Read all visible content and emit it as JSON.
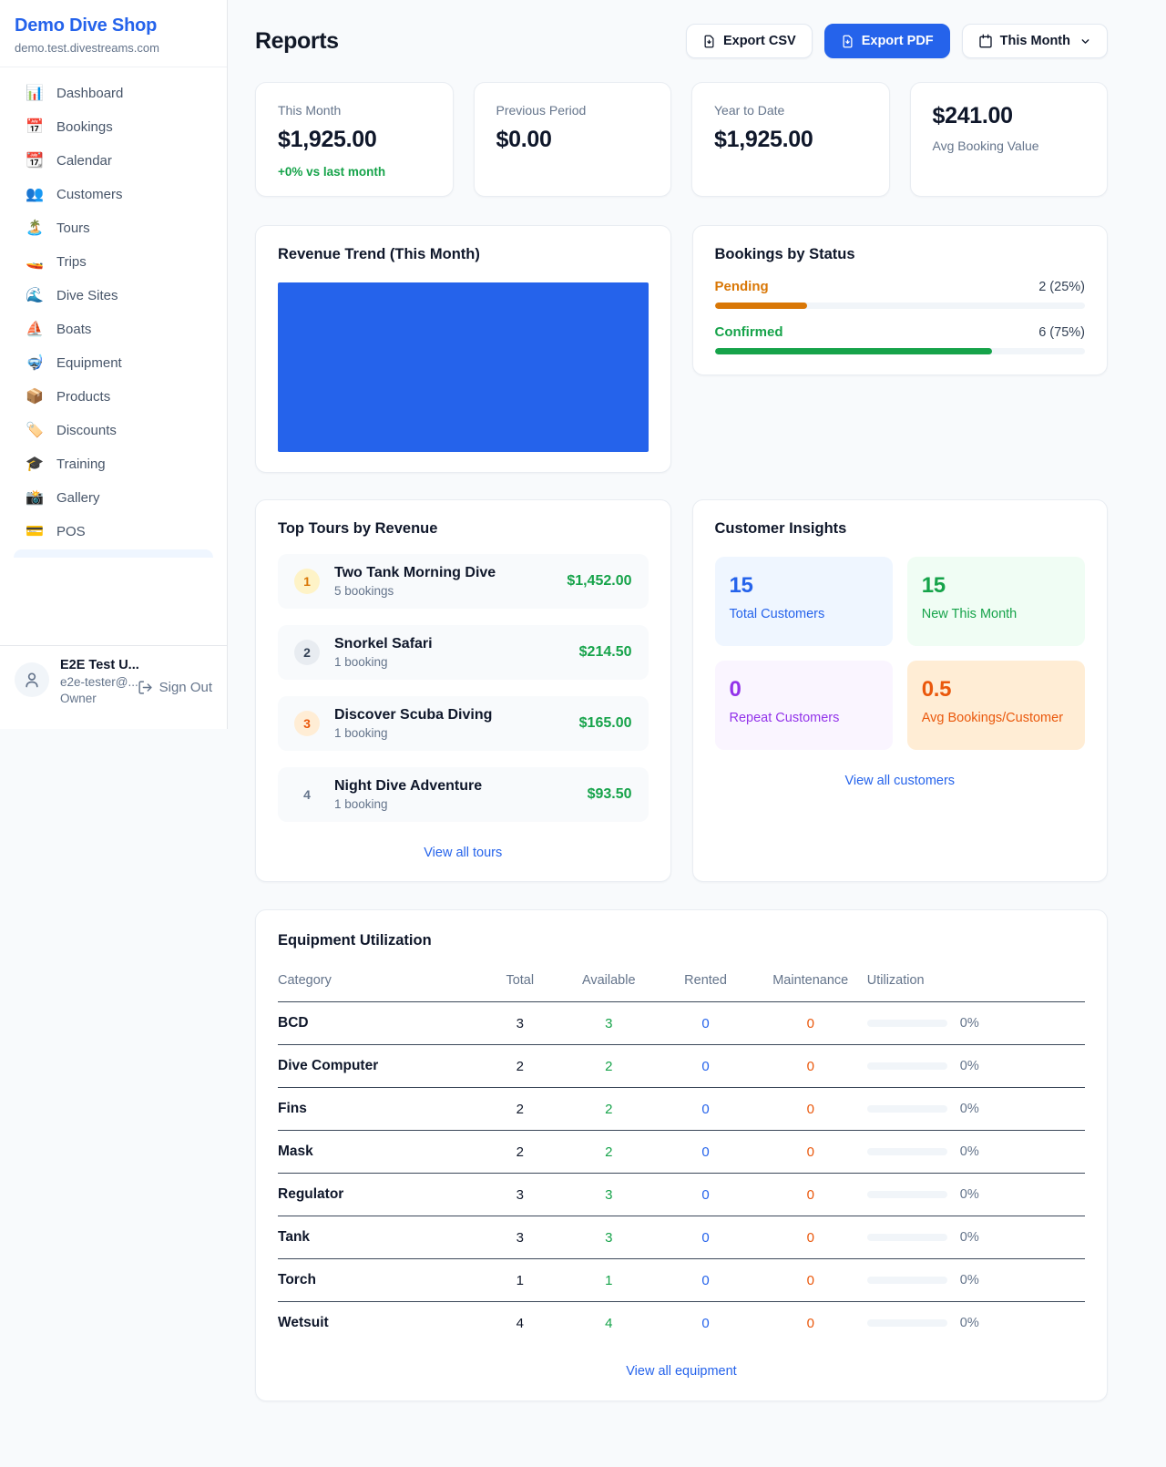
{
  "app": {
    "name": "Demo Dive Shop",
    "domain": "demo.test.divestreams.com"
  },
  "colors": {
    "accent": "#2563eb",
    "success": "#16a34a",
    "warning": "#d97706",
    "danger_orange": "#ea580c",
    "purple": "#9333ea",
    "page_bg": "#f8fafc"
  },
  "sidebar": {
    "items": [
      {
        "label": "Dashboard",
        "icon": "📊",
        "icon_name": "bar-chart-icon"
      },
      {
        "label": "Bookings",
        "icon": "📅",
        "icon_name": "calendar-date-icon"
      },
      {
        "label": "Calendar",
        "icon": "📆",
        "icon_name": "tear-off-calendar-icon"
      },
      {
        "label": "Customers",
        "icon": "👥",
        "icon_name": "people-icon"
      },
      {
        "label": "Tours",
        "icon": "🏝️",
        "icon_name": "island-icon"
      },
      {
        "label": "Trips",
        "icon": "🚤",
        "icon_name": "speedboat-icon"
      },
      {
        "label": "Dive Sites",
        "icon": "🌊",
        "icon_name": "wave-icon"
      },
      {
        "label": "Boats",
        "icon": "⛵",
        "icon_name": "sailboat-icon"
      },
      {
        "label": "Equipment",
        "icon": "🤿",
        "icon_name": "diving-mask-icon"
      },
      {
        "label": "Products",
        "icon": "📦",
        "icon_name": "package-icon"
      },
      {
        "label": "Discounts",
        "icon": "🏷️",
        "icon_name": "tag-icon"
      },
      {
        "label": "Training",
        "icon": "🎓",
        "icon_name": "graduation-cap-icon"
      },
      {
        "label": "Gallery",
        "icon": "📸",
        "icon_name": "camera-icon"
      },
      {
        "label": "POS",
        "icon": "💳",
        "icon_name": "credit-card-icon"
      }
    ],
    "user": {
      "name": "E2E Test U...",
      "email": "e2e-tester@...",
      "role": "Owner",
      "sign_out_label": "Sign Out"
    }
  },
  "header": {
    "title": "Reports",
    "export_csv": "Export CSV",
    "export_pdf": "Export PDF",
    "period": "This Month"
  },
  "stats": [
    {
      "label": "This Month",
      "value": "$1,925.00",
      "delta": "+0% vs last month"
    },
    {
      "label": "Previous Period",
      "value": "$0.00"
    },
    {
      "label": "Year to Date",
      "value": "$1,925.00"
    },
    {
      "label": "Avg Booking Value",
      "value": "$241.00"
    }
  ],
  "revenue_trend": {
    "title": "Revenue Trend (This Month)"
  },
  "chart_data": {
    "type": "bar",
    "title": "Revenue Trend (This Month)",
    "categories": [
      "This Month"
    ],
    "values": [
      1925
    ],
    "xlabel": "",
    "ylabel": "",
    "bar_color": "#2563eb",
    "note": "single full-width solid bar, no visible axes, ticks or gridlines"
  },
  "bookings_by_status": {
    "title": "Bookings by Status",
    "items": [
      {
        "label": "Pending",
        "count_text": "2 (25%)",
        "percent": 25
      },
      {
        "label": "Confirmed",
        "count_text": "6 (75%)",
        "percent": 75
      }
    ]
  },
  "top_tours": {
    "title": "Top Tours by Revenue",
    "items": [
      {
        "rank": "1",
        "name": "Two Tank Morning Dive",
        "bookings_text": "5 bookings",
        "amount": "$1,452.00"
      },
      {
        "rank": "2",
        "name": "Snorkel Safari",
        "bookings_text": "1 booking",
        "amount": "$214.50"
      },
      {
        "rank": "3",
        "name": "Discover Scuba Diving",
        "bookings_text": "1 booking",
        "amount": "$165.00"
      },
      {
        "rank": "4",
        "name": "Night Dive Adventure",
        "bookings_text": "1 booking",
        "amount": "$93.50"
      }
    ],
    "view_all_label": "View all tours"
  },
  "customer_insights": {
    "title": "Customer Insights",
    "tiles": [
      {
        "value": "15",
        "label": "Total Customers"
      },
      {
        "value": "15",
        "label": "New This Month"
      },
      {
        "value": "0",
        "label": "Repeat Customers"
      },
      {
        "value": "0.5",
        "label": "Avg Bookings/Customer"
      }
    ],
    "view_all_label": "View all customers"
  },
  "equipment": {
    "title": "Equipment Utilization",
    "columns": [
      "Category",
      "Total",
      "Available",
      "Rented",
      "Maintenance",
      "Utilization"
    ],
    "rows": [
      {
        "category": "BCD",
        "total": 3,
        "available": 3,
        "rented": 0,
        "maintenance": 0,
        "utilization_percent": 0,
        "utilization_text": "0%"
      },
      {
        "category": "Dive Computer",
        "total": 2,
        "available": 2,
        "rented": 0,
        "maintenance": 0,
        "utilization_percent": 0,
        "utilization_text": "0%"
      },
      {
        "category": "Fins",
        "total": 2,
        "available": 2,
        "rented": 0,
        "maintenance": 0,
        "utilization_percent": 0,
        "utilization_text": "0%"
      },
      {
        "category": "Mask",
        "total": 2,
        "available": 2,
        "rented": 0,
        "maintenance": 0,
        "utilization_percent": 0,
        "utilization_text": "0%"
      },
      {
        "category": "Regulator",
        "total": 3,
        "available": 3,
        "rented": 0,
        "maintenance": 0,
        "utilization_percent": 0,
        "utilization_text": "0%"
      },
      {
        "category": "Tank",
        "total": 3,
        "available": 3,
        "rented": 0,
        "maintenance": 0,
        "utilization_percent": 0,
        "utilization_text": "0%"
      },
      {
        "category": "Torch",
        "total": 1,
        "available": 1,
        "rented": 0,
        "maintenance": 0,
        "utilization_percent": 0,
        "utilization_text": "0%"
      },
      {
        "category": "Wetsuit",
        "total": 4,
        "available": 4,
        "rented": 0,
        "maintenance": 0,
        "utilization_percent": 0,
        "utilization_text": "0%"
      }
    ],
    "view_all_label": "View all equipment"
  }
}
